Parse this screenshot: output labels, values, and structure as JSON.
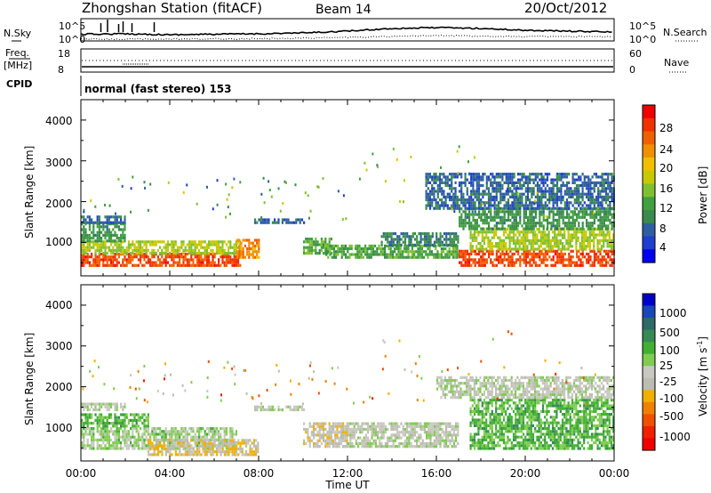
{
  "header": {
    "station": "Zhongshan Station (fitACF)",
    "beam": "Beam 14",
    "date": "20/Oct/2012"
  },
  "panels": {
    "nsky_label": "N.Sky",
    "nsearch_label": "N.Search",
    "noise_ticks_left": [
      "10^5",
      "10^0"
    ],
    "noise_ticks_right": [
      "10^5",
      "10^0"
    ],
    "freq_label": "Freq.",
    "freq_unit": "[MHz]",
    "freq_ticks": [
      "18",
      "8"
    ],
    "nave_label": "Nave",
    "nave_ticks": [
      "60",
      "0"
    ],
    "cpid_label": "CPID",
    "cpid_text": "normal (fast stereo) 153"
  },
  "axes": {
    "ylabel": "Slant Range [km]",
    "xlabel": "Time UT",
    "yticks": [
      "4000",
      "3000",
      "2000",
      "1000"
    ],
    "xticks": [
      "00:00",
      "04:00",
      "08:00",
      "12:00",
      "16:00",
      "20:00",
      "00:00"
    ]
  },
  "colorbars": {
    "power": {
      "label": "Power [dB]",
      "ticks": [
        "28",
        "24",
        "20",
        "16",
        "12",
        "8",
        "4"
      ],
      "colors": [
        "#f00000",
        "#f03000",
        "#f06000",
        "#f09000",
        "#f0c000",
        "#c8c800",
        "#80c030",
        "#40a040",
        "#3a8a4c",
        "#2f5fa0",
        "#1f3fd0",
        "#0000f0"
      ]
    },
    "velocity": {
      "label": "Velocity [m s",
      "label_sup": "-1",
      "label_end": "]",
      "ticks": [
        "1000",
        "500",
        "100",
        "25",
        "-25",
        "-100",
        "-500",
        "-1000"
      ],
      "colors": [
        "#0000c8",
        "#1848b8",
        "#2e6a68",
        "#358a55",
        "#40b030",
        "#80cc50",
        "#c8c8c0",
        "#bcbcb0",
        "#f0b000",
        "#f08000",
        "#f05000",
        "#f02000",
        "#f00000"
      ]
    }
  },
  "chart_data": [
    {
      "type": "line",
      "title": "Zhongshan Station (fitACF)",
      "series": [
        {
          "name": "N.Sky",
          "x": [
            0,
            2,
            4,
            6,
            8,
            10,
            12,
            14,
            16,
            18,
            20,
            22,
            24
          ],
          "y": [
            1.5,
            1.6,
            1.4,
            1.5,
            1.6,
            1.8,
            2.2,
            2.8,
            3.0,
            2.8,
            2.4,
            2.2,
            2.0
          ]
        },
        {
          "name": "N.Search",
          "x": [
            0,
            4,
            8,
            12,
            16,
            20,
            24
          ],
          "y": [
            0.4,
            0.4,
            0.5,
            0.8,
            1.2,
            1.0,
            0.9
          ]
        }
      ],
      "ylim": [
        0,
        5
      ]
    },
    {
      "type": "heatmap",
      "title": "Power",
      "xlabel": "Time UT",
      "ylabel": "Slant Range [km]",
      "xlim": [
        0,
        24
      ],
      "ylim": [
        180,
        4500
      ],
      "colorbar": "Power [dB]",
      "clim": [
        0,
        32
      ],
      "regions": [
        {
          "t0": 0.0,
          "t1": 7.2,
          "r0": 400,
          "r1": 700,
          "value": 28
        },
        {
          "t0": 0.0,
          "t1": 7.2,
          "r0": 700,
          "r1": 1000,
          "value": 16
        },
        {
          "t0": 0.0,
          "t1": 2.0,
          "r0": 1000,
          "r1": 1450,
          "value": 10
        },
        {
          "t0": 0.0,
          "t1": 2.0,
          "r0": 1450,
          "r1": 1650,
          "value": 6
        },
        {
          "t0": 7.0,
          "t1": 8.0,
          "r0": 600,
          "r1": 1050,
          "value": 24
        },
        {
          "t0": 7.8,
          "t1": 10.0,
          "r0": 1450,
          "r1": 1520,
          "value": 6
        },
        {
          "t0": 10.0,
          "t1": 11.3,
          "r0": 700,
          "r1": 1100,
          "value": 12
        },
        {
          "t0": 11.0,
          "t1": 17.0,
          "r0": 600,
          "r1": 900,
          "value": 12
        },
        {
          "t0": 13.5,
          "t1": 17.0,
          "r0": 900,
          "r1": 1200,
          "value": 8
        },
        {
          "t0": 17.0,
          "t1": 24.0,
          "r0": 400,
          "r1": 800,
          "value": 28
        },
        {
          "t0": 17.5,
          "t1": 24.0,
          "r0": 800,
          "r1": 1300,
          "value": 16
        },
        {
          "t0": 17.0,
          "t1": 24.0,
          "r0": 1300,
          "r1": 1800,
          "value": 10
        },
        {
          "t0": 15.5,
          "t1": 24.0,
          "r0": 1800,
          "r1": 2700,
          "value": 6
        }
      ]
    },
    {
      "type": "heatmap",
      "title": "Velocity",
      "xlabel": "Time UT",
      "ylabel": "Slant Range [km]",
      "xlim": [
        0,
        24
      ],
      "ylim": [
        180,
        4500
      ],
      "colorbar": "Velocity [m s-1]",
      "clim": [
        -1000,
        1000
      ],
      "regions": [
        {
          "t0": 0.0,
          "t1": 7.0,
          "r0": 450,
          "r1": 1000,
          "value": 100
        },
        {
          "t0": 0.0,
          "t1": 3.0,
          "r0": 1000,
          "r1": 1300,
          "value": 300
        },
        {
          "t0": 0.0,
          "t1": 2.0,
          "r0": 1400,
          "r1": 1600,
          "value": 0
        },
        {
          "t0": 3.0,
          "t1": 8.0,
          "r0": 300,
          "r1": 700,
          "value": -200
        },
        {
          "t0": 7.8,
          "t1": 10.0,
          "r0": 1400,
          "r1": 1520,
          "value": 0
        },
        {
          "t0": 10.0,
          "t1": 12.0,
          "r0": 500,
          "r1": 1100,
          "value": -150
        },
        {
          "t0": 12.0,
          "t1": 17.0,
          "r0": 500,
          "r1": 1100,
          "value": 0
        },
        {
          "t0": 17.5,
          "t1": 24.0,
          "r0": 450,
          "r1": 1700,
          "value": 300
        },
        {
          "t0": 16.0,
          "t1": 24.0,
          "r0": 1700,
          "r1": 2200,
          "value": 0
        }
      ]
    }
  ]
}
